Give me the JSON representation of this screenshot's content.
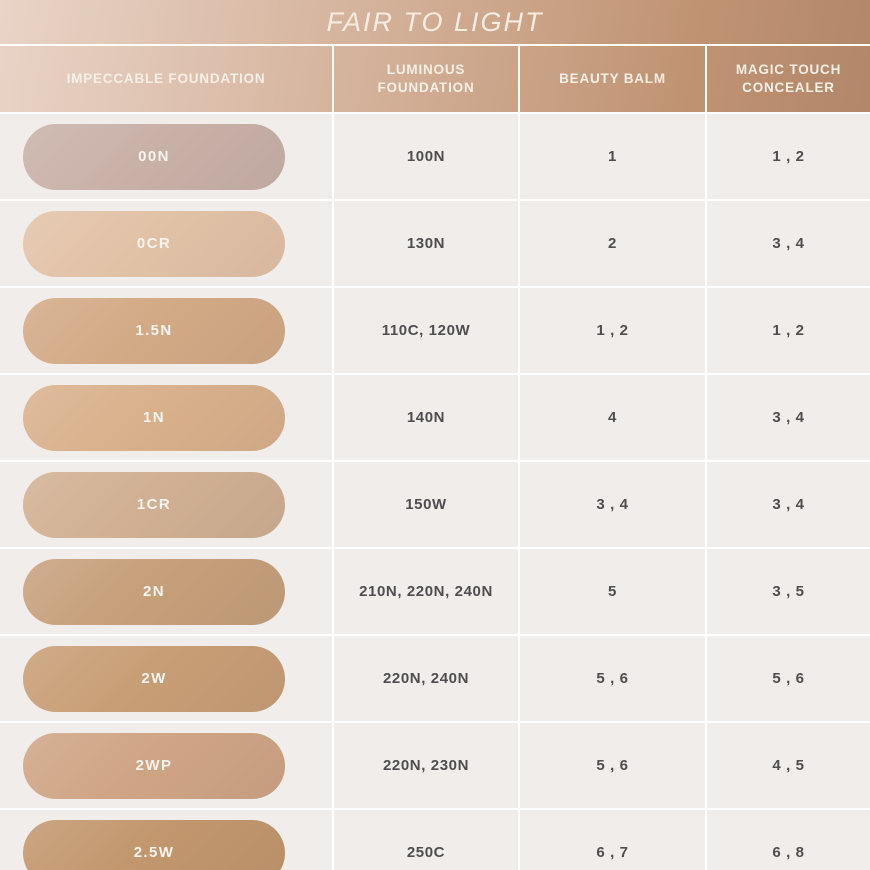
{
  "title": "FAIR TO LIGHT",
  "columns": [
    "IMPECCABLE FOUNDATION",
    "LUMINOUS FOUNDATION",
    "BEAUTY BALM",
    "MAGIC TOUCH CONCEALER"
  ],
  "colors": {
    "header_gradient_left": "#e9d4c7",
    "header_gradient_right": "#b2876a",
    "cell_background": "#f0edeb",
    "separator": "#ffffff",
    "header_text": "#f6efe8",
    "value_text": "#4f4d4e",
    "pill_text": "#f8f4f0"
  },
  "rows": [
    {
      "shade": "00N",
      "swatch_color": "#c9b1a8",
      "luminous": "100N",
      "beauty_balm": "1",
      "concealer": "1 , 2"
    },
    {
      "shade": "0CR",
      "swatch_color": "#e2c2a7",
      "luminous": "130N",
      "beauty_balm": "2",
      "concealer": "3 , 4"
    },
    {
      "shade": "1.5N",
      "swatch_color": "#d3aa86",
      "luminous": "110C, 120W",
      "beauty_balm": "1 , 2",
      "concealer": "1 , 2"
    },
    {
      "shade": "1N",
      "swatch_color": "#d9b18c",
      "luminous": "140N",
      "beauty_balm": "4",
      "concealer": "3 , 4"
    },
    {
      "shade": "1CR",
      "swatch_color": "#d1b093",
      "luminous": "150W",
      "beauty_balm": "3 , 4",
      "concealer": "3 , 4"
    },
    {
      "shade": "2N",
      "swatch_color": "#c7a07b",
      "luminous": "210N, 220N, 240N",
      "beauty_balm": "5",
      "concealer": "3 , 5"
    },
    {
      "shade": "2W",
      "swatch_color": "#c89e76",
      "luminous": "220N, 240N",
      "beauty_balm": "5 , 6",
      "concealer": "5 , 6"
    },
    {
      "shade": "2WP",
      "swatch_color": "#cfa585",
      "luminous": "220N, 230N",
      "beauty_balm": "5 , 6",
      "concealer": "4 , 5"
    },
    {
      "shade": "2.5W",
      "swatch_color": "#c2976e",
      "luminous": "250C",
      "beauty_balm": "6 , 7",
      "concealer": "6 , 8"
    }
  ],
  "chart_data": {
    "type": "table",
    "title": "FAIR TO LIGHT",
    "columns": [
      "IMPECCABLE FOUNDATION",
      "LUMINOUS FOUNDATION",
      "BEAUTY BALM",
      "MAGIC TOUCH CONCEALER"
    ],
    "rows": [
      [
        "00N",
        "100N",
        "1",
        "1 , 2"
      ],
      [
        "0CR",
        "130N",
        "2",
        "3 , 4"
      ],
      [
        "1.5N",
        "110C, 120W",
        "1 , 2",
        "1 , 2"
      ],
      [
        "1N",
        "140N",
        "4",
        "3 , 4"
      ],
      [
        "1CR",
        "150W",
        "3 , 4",
        "3 , 4"
      ],
      [
        "2N",
        "210N, 220N, 240N",
        "5",
        "3 , 5"
      ],
      [
        "2W",
        "220N, 240N",
        "5 , 6",
        "5 , 6"
      ],
      [
        "2WP",
        "220N, 230N",
        "5 , 6",
        "4 , 5"
      ],
      [
        "2.5W",
        "250C",
        "6 , 7",
        "6 , 8"
      ]
    ]
  }
}
